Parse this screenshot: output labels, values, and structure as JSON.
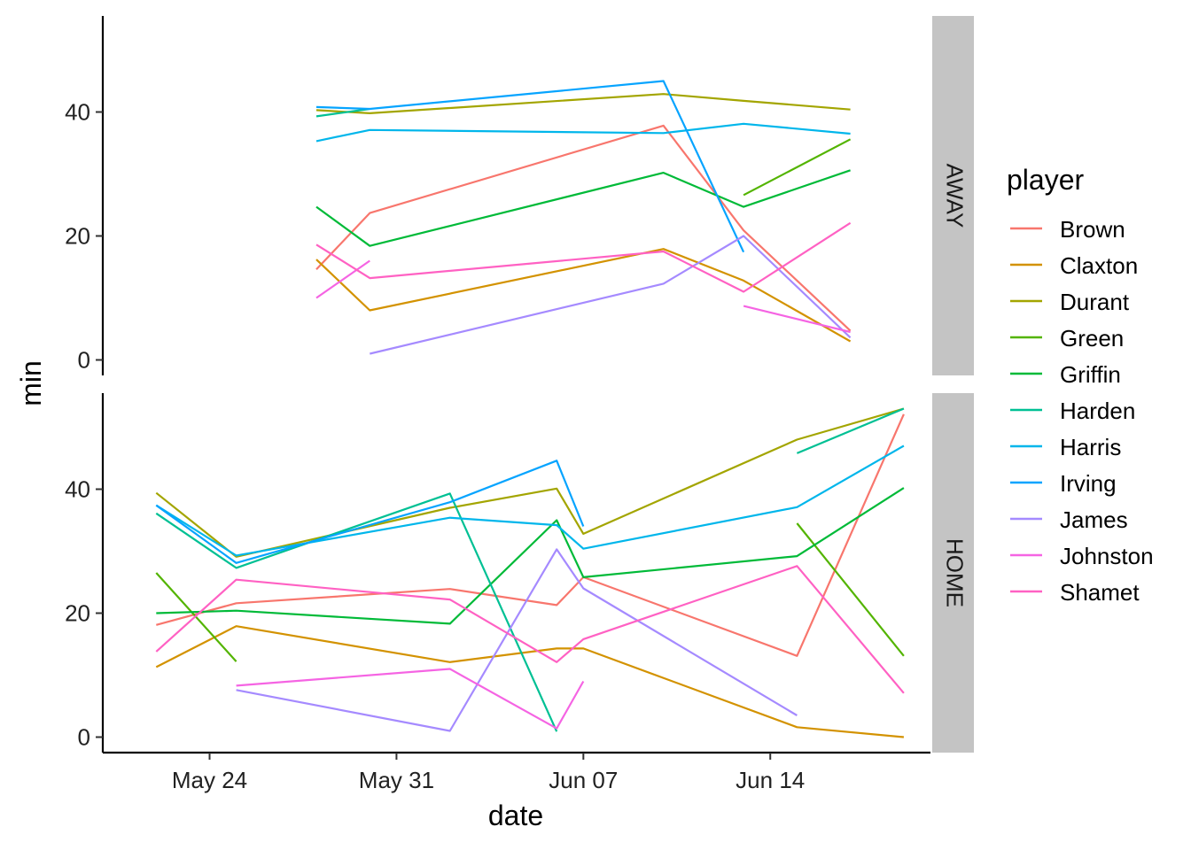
{
  "chart_data": {
    "type": "line",
    "xlabel": "date",
    "ylabel": "min",
    "x_ticks": [
      {
        "date": "2021-05-24",
        "label": "May 24"
      },
      {
        "date": "2021-05-31",
        "label": "May 31"
      },
      {
        "date": "2021-06-07",
        "label": "Jun 07"
      },
      {
        "date": "2021-06-14",
        "label": "Jun 14"
      }
    ],
    "xlim": [
      "2021-05-20",
      "2021-06-20"
    ],
    "y_ticks": [
      0,
      20,
      40
    ],
    "ylim": [
      -2.5,
      55.5
    ],
    "grid": false,
    "legend": {
      "title": "player",
      "position": "right"
    },
    "series": [
      {
        "name": "Brown",
        "color": "#F8766D"
      },
      {
        "name": "Claxton",
        "color": "#D39200"
      },
      {
        "name": "Durant",
        "color": "#A3A500"
      },
      {
        "name": "Green",
        "color": "#53B400"
      },
      {
        "name": "Griffin",
        "color": "#00BA38"
      },
      {
        "name": "Harden",
        "color": "#00C094"
      },
      {
        "name": "Harris",
        "color": "#00B6EB"
      },
      {
        "name": "Irving",
        "color": "#06A4FF"
      },
      {
        "name": "James",
        "color": "#A58AFF"
      },
      {
        "name": "Johnston",
        "color": "#F564E3"
      },
      {
        "name": "Shamet",
        "color": "#FF61C3"
      }
    ],
    "facets": [
      {
        "label": "AWAY",
        "lines": [
          {
            "player": "Brown",
            "points": [
              [
                "2021-05-28",
                14.6
              ],
              [
                "2021-05-30",
                23.7
              ],
              [
                "2021-06-10",
                37.8
              ],
              [
                "2021-06-13",
                20.9
              ],
              [
                "2021-06-17",
                4.7
              ]
            ]
          },
          {
            "player": "Claxton",
            "points": [
              [
                "2021-05-28",
                16.2
              ],
              [
                "2021-05-30",
                8.0
              ],
              [
                "2021-06-10",
                17.9
              ],
              [
                "2021-06-13",
                12.8
              ],
              [
                "2021-06-17",
                3.0
              ]
            ]
          },
          {
            "player": "Durant",
            "points": [
              [
                "2021-05-28",
                40.3
              ],
              [
                "2021-05-30",
                39.8
              ],
              [
                "2021-06-10",
                42.9
              ],
              [
                "2021-06-13",
                41.8
              ],
              [
                "2021-06-17",
                40.4
              ]
            ]
          },
          {
            "player": "Green",
            "points": [
              [
                "2021-06-13",
                26.6
              ],
              [
                "2021-06-17",
                35.6
              ]
            ]
          },
          {
            "player": "Griffin",
            "points": [
              [
                "2021-05-28",
                24.7
              ],
              [
                "2021-05-30",
                18.4
              ],
              [
                "2021-06-10",
                30.2
              ],
              [
                "2021-06-13",
                24.7
              ],
              [
                "2021-06-17",
                30.6
              ]
            ]
          },
          {
            "player": "Harden",
            "points": [
              [
                "2021-05-28",
                39.3
              ],
              [
                "2021-05-30",
                40.5
              ]
            ]
          },
          {
            "player": "Harris",
            "points": [
              [
                "2021-05-28",
                35.3
              ],
              [
                "2021-05-30",
                37.1
              ],
              [
                "2021-06-10",
                36.6
              ],
              [
                "2021-06-13",
                38.1
              ],
              [
                "2021-06-17",
                36.5
              ]
            ]
          },
          {
            "player": "Irving",
            "points": [
              [
                "2021-05-28",
                40.8
              ],
              [
                "2021-05-30",
                40.5
              ],
              [
                "2021-06-10",
                45.0
              ],
              [
                "2021-06-13",
                17.4
              ]
            ]
          },
          {
            "player": "James",
            "points": [
              [
                "2021-05-30",
                1.0
              ],
              [
                "2021-06-10",
                12.3
              ],
              [
                "2021-06-13",
                20.0
              ],
              [
                "2021-06-17",
                3.6
              ]
            ]
          },
          {
            "player": "Johnston",
            "points": [
              [
                "2021-05-28",
                10.0
              ],
              [
                "2021-05-30",
                16.0
              ]
            ]
          },
          {
            "player": "Johnston",
            "points": [
              [
                "2021-06-13",
                8.7
              ],
              [
                "2021-06-17",
                4.5
              ]
            ]
          },
          {
            "player": "Shamet",
            "points": [
              [
                "2021-05-28",
                18.6
              ],
              [
                "2021-05-30",
                13.2
              ],
              [
                "2021-06-10",
                17.5
              ],
              [
                "2021-06-13",
                11.0
              ],
              [
                "2021-06-17",
                22.1
              ]
            ]
          }
        ]
      },
      {
        "label": "HOME",
        "lines": [
          {
            "player": "Brown",
            "points": [
              [
                "2021-05-22",
                18.1
              ],
              [
                "2021-05-25",
                21.6
              ],
              [
                "2021-06-02",
                23.9
              ],
              [
                "2021-06-06",
                21.3
              ],
              [
                "2021-06-07",
                25.8
              ],
              [
                "2021-06-15",
                13.1
              ],
              [
                "2021-06-19",
                52.1
              ]
            ]
          },
          {
            "player": "Claxton",
            "points": [
              [
                "2021-05-22",
                11.3
              ],
              [
                "2021-05-25",
                17.9
              ],
              [
                "2021-06-02",
                12.1
              ],
              [
                "2021-06-06",
                14.3
              ],
              [
                "2021-06-07",
                14.3
              ],
              [
                "2021-06-15",
                1.6
              ],
              [
                "2021-06-19",
                0.0
              ]
            ]
          },
          {
            "player": "Durant",
            "points": [
              [
                "2021-05-22",
                39.4
              ],
              [
                "2021-05-25",
                29.1
              ],
              [
                "2021-06-02",
                37.0
              ],
              [
                "2021-06-06",
                40.1
              ],
              [
                "2021-06-07",
                32.8
              ],
              [
                "2021-06-15",
                48.0
              ],
              [
                "2021-06-19",
                53.0
              ]
            ]
          },
          {
            "player": "Green",
            "points": [
              [
                "2021-05-22",
                26.5
              ],
              [
                "2021-05-25",
                12.2
              ]
            ]
          },
          {
            "player": "Green",
            "points": [
              [
                "2021-06-15",
                34.5
              ],
              [
                "2021-06-19",
                13.1
              ]
            ]
          },
          {
            "player": "Griffin",
            "points": [
              [
                "2021-05-22",
                20.0
              ],
              [
                "2021-05-25",
                20.4
              ],
              [
                "2021-06-02",
                18.3
              ],
              [
                "2021-06-06",
                35.0
              ],
              [
                "2021-06-07",
                25.8
              ],
              [
                "2021-06-15",
                29.2
              ],
              [
                "2021-06-19",
                40.2
              ]
            ]
          },
          {
            "player": "Harden",
            "points": [
              [
                "2021-05-22",
                36.1
              ],
              [
                "2021-05-25",
                27.3
              ],
              [
                "2021-06-02",
                39.3
              ],
              [
                "2021-06-06",
                0.9
              ]
            ]
          },
          {
            "player": "Harden",
            "points": [
              [
                "2021-06-15",
                45.8
              ],
              [
                "2021-06-19",
                53.0
              ]
            ]
          },
          {
            "player": "Harris",
            "points": [
              [
                "2021-05-22",
                37.4
              ],
              [
                "2021-05-25",
                29.3
              ],
              [
                "2021-06-02",
                35.4
              ],
              [
                "2021-06-06",
                34.2
              ],
              [
                "2021-06-07",
                30.4
              ],
              [
                "2021-06-15",
                37.1
              ],
              [
                "2021-06-19",
                47.0
              ]
            ]
          },
          {
            "player": "Irving",
            "points": [
              [
                "2021-05-22",
                37.4
              ],
              [
                "2021-05-25",
                28.1
              ],
              [
                "2021-06-02",
                37.9
              ],
              [
                "2021-06-06",
                44.6
              ],
              [
                "2021-06-07",
                34.0
              ]
            ]
          },
          {
            "player": "James",
            "points": [
              [
                "2021-05-25",
                7.6
              ],
              [
                "2021-06-02",
                1.0
              ],
              [
                "2021-06-06",
                30.3
              ],
              [
                "2021-06-07",
                24.0
              ],
              [
                "2021-06-15",
                3.5
              ]
            ]
          },
          {
            "player": "Johnston",
            "points": [
              [
                "2021-05-25",
                8.3
              ],
              [
                "2021-06-02",
                11.0
              ],
              [
                "2021-06-06",
                1.4
              ],
              [
                "2021-06-07",
                9.0
              ]
            ]
          },
          {
            "player": "Shamet",
            "points": [
              [
                "2021-05-22",
                13.8
              ],
              [
                "2021-05-25",
                25.4
              ],
              [
                "2021-06-02",
                22.2
              ],
              [
                "2021-06-06",
                12.1
              ],
              [
                "2021-06-07",
                15.8
              ],
              [
                "2021-06-15",
                27.6
              ],
              [
                "2021-06-19",
                7.1
              ]
            ]
          }
        ]
      }
    ]
  }
}
